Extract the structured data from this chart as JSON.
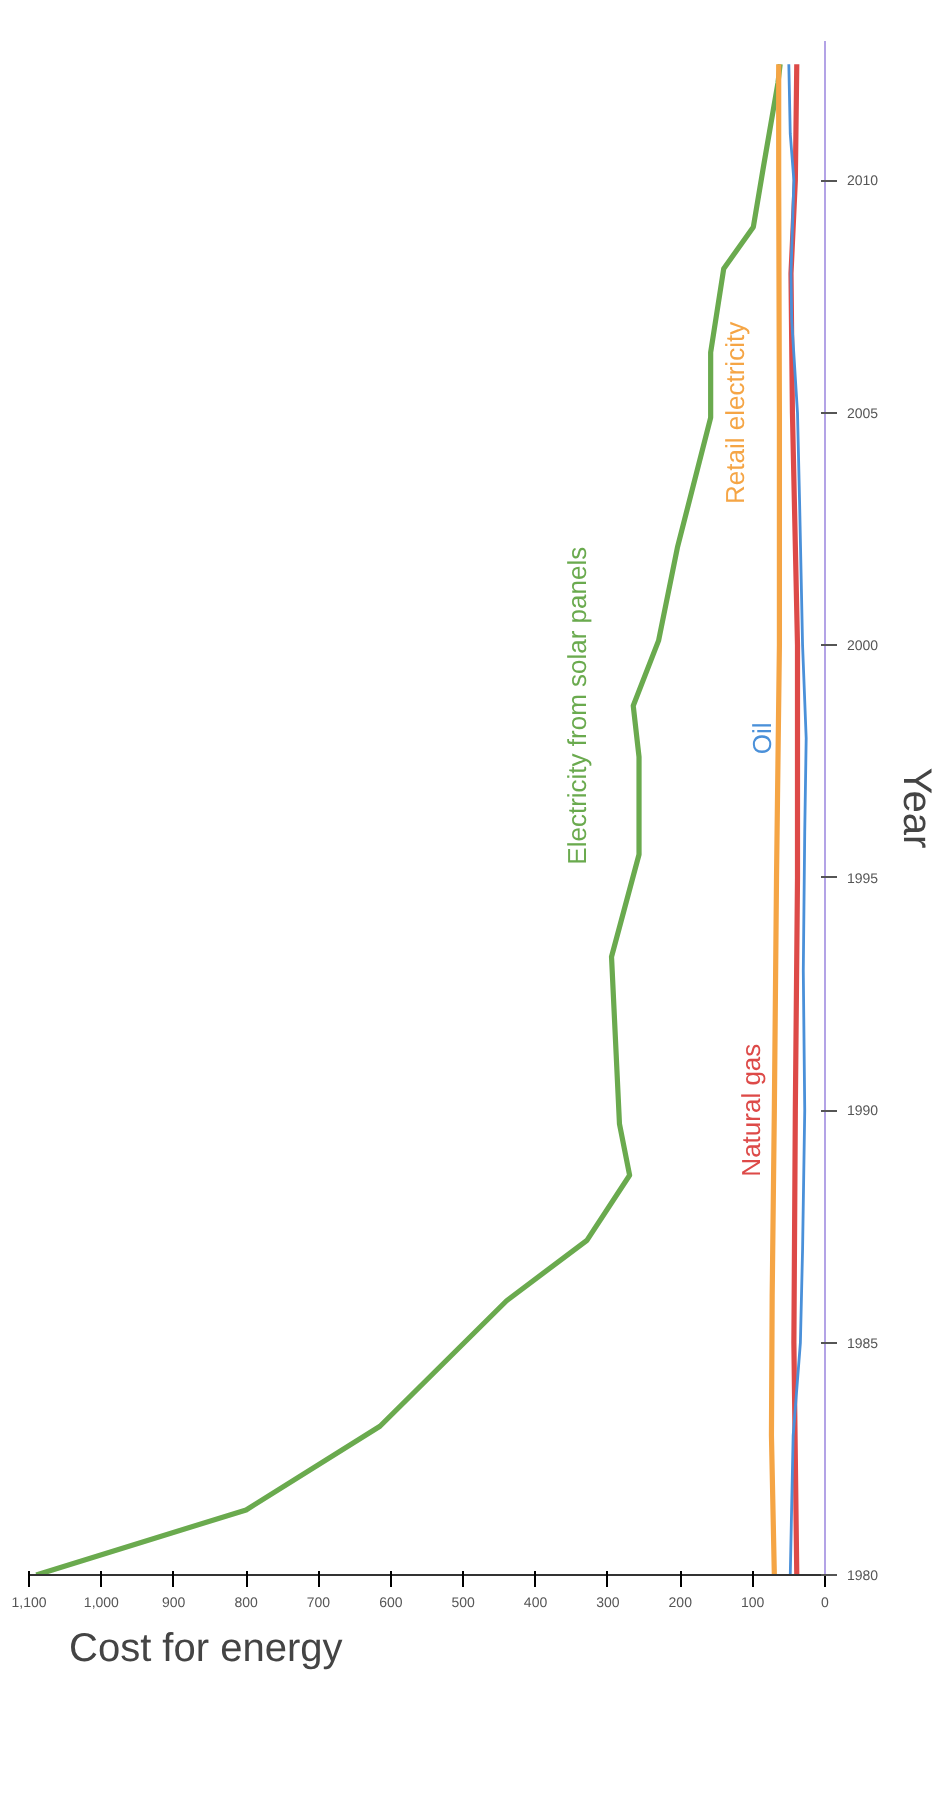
{
  "chart_data": {
    "type": "line",
    "orientation": "horizontal",
    "ylabel": "Year",
    "xlabel": "Cost for energy",
    "ylim": [
      1980,
      2013
    ],
    "yticks": [
      1980,
      1985,
      1990,
      1995,
      2000,
      2005,
      2010
    ],
    "xlim": [
      1100,
      0
    ],
    "xticks": [
      0,
      100,
      200,
      300,
      400,
      500,
      600,
      700,
      800,
      900,
      {
        "value": 1000,
        "label": "1,000"
      },
      {
        "value": 1100,
        "label": "1,100"
      }
    ],
    "grid": false,
    "legend": false,
    "marker": "none",
    "line_style": "solid",
    "series": [
      {
        "name": "Electricity from solar panels",
        "color": "#6aaa4e",
        "x": [
          1980,
          1981.4,
          1983.2,
          1985.9,
          1987.2,
          1988.6,
          1989.7,
          1993.3,
          1995.5,
          1997.6,
          1998.7,
          2000.1,
          2002.1,
          2004.9,
          2006.3,
          2008.1,
          2009,
          2010.3,
          2012.1,
          2012.5
        ],
        "values": [
          1090,
          800,
          615,
          440,
          329,
          270,
          284,
          295,
          257,
          257,
          265,
          230,
          204,
          158,
          158,
          140,
          99,
          85,
          65,
          62
        ]
      },
      {
        "name": "Retail electricity",
        "color": "#f5a545",
        "x": [
          1980,
          1983,
          1986,
          1990,
          1995,
          2000,
          2005,
          2010,
          2012.5
        ],
        "values": [
          70,
          74,
          73,
          70,
          67,
          63,
          63,
          64,
          64
        ]
      },
      {
        "name": "Natural gas",
        "color": "#dd4a48",
        "x": [
          1980,
          1985,
          1990,
          1995,
          2000,
          2005,
          2008,
          2010,
          2012.5
        ],
        "values": [
          39,
          43,
          41,
          38,
          38,
          45,
          47,
          41,
          39
        ]
      },
      {
        "name": "Oil",
        "color": "#4a90d9",
        "x": [
          1980,
          1983,
          1985,
          1987,
          1990,
          1993,
          1996,
          1998,
          2000,
          2003,
          2005,
          2007,
          2008,
          2010,
          2011,
          2012.5
        ],
        "values": [
          48,
          44,
          34,
          31,
          28,
          30,
          28,
          26,
          31,
          35,
          38,
          46,
          47,
          43,
          48,
          50
        ]
      }
    ]
  }
}
